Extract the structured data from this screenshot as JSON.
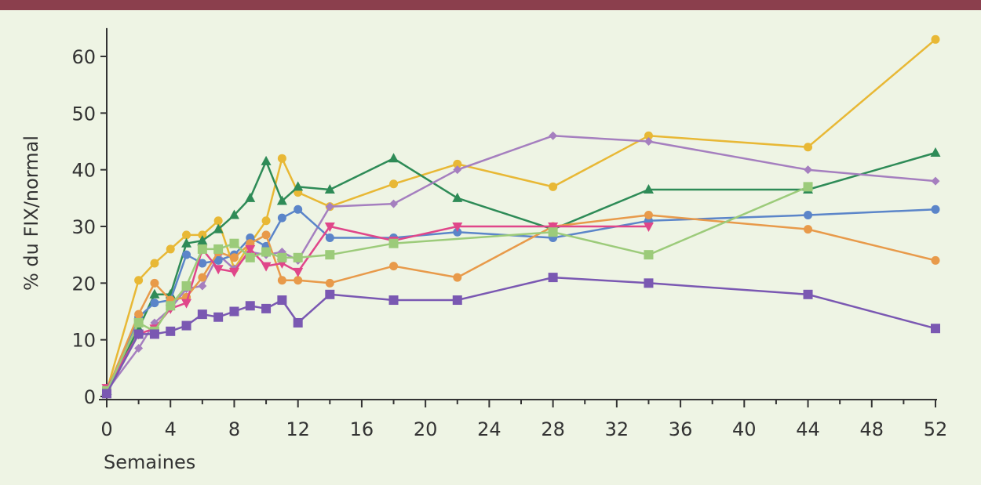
{
  "header_bar": {
    "color": "#8b3f4d"
  },
  "chart_data": {
    "type": "line",
    "title": "",
    "xlabel": "Semaines",
    "ylabel": "% du FIX/normal",
    "xlim": [
      0,
      52
    ],
    "ylim": [
      0,
      65
    ],
    "xticks": [
      0,
      4,
      8,
      12,
      16,
      20,
      24,
      28,
      32,
      36,
      40,
      44,
      48,
      52
    ],
    "yticks": [
      0,
      10,
      20,
      30,
      40,
      50,
      60
    ],
    "grid": false,
    "legend": "none",
    "series": [
      {
        "color": "#e8b835",
        "marker": "circle",
        "points": [
          [
            0,
            1
          ],
          [
            2,
            20.5
          ],
          [
            3,
            23.5
          ],
          [
            4,
            26
          ],
          [
            5,
            28.5
          ],
          [
            6,
            28.5
          ],
          [
            7,
            31
          ],
          [
            8,
            22.5
          ],
          [
            9,
            27
          ],
          [
            10,
            31
          ],
          [
            11,
            42
          ],
          [
            12,
            36
          ],
          [
            14,
            33.5
          ],
          [
            18,
            37.5
          ],
          [
            22,
            41
          ],
          [
            28,
            37
          ],
          [
            34,
            46
          ],
          [
            44,
            44
          ],
          [
            52,
            63
          ]
        ]
      },
      {
        "color": "#2e8b57",
        "marker": "triangle-up",
        "points": [
          [
            0,
            1
          ],
          [
            2,
            12
          ],
          [
            3,
            18
          ],
          [
            4,
            18
          ],
          [
            5,
            27
          ],
          [
            6,
            27.5
          ],
          [
            7,
            29.5
          ],
          [
            8,
            32
          ],
          [
            9,
            35
          ],
          [
            10,
            41.5
          ],
          [
            11,
            34.5
          ],
          [
            12,
            37
          ],
          [
            14,
            36.5
          ],
          [
            18,
            42
          ],
          [
            22,
            35
          ],
          [
            28,
            29.5
          ],
          [
            34,
            36.5
          ],
          [
            44,
            36.5
          ],
          [
            52,
            43
          ]
        ]
      },
      {
        "color": "#a57fbf",
        "marker": "diamond",
        "points": [
          [
            0,
            1
          ],
          [
            2,
            8.5
          ],
          [
            3,
            13
          ],
          [
            4,
            15.5
          ],
          [
            5,
            19
          ],
          [
            6,
            19.5
          ],
          [
            7,
            25
          ],
          [
            8,
            22.5
          ],
          [
            9,
            25.5
          ],
          [
            10,
            25
          ],
          [
            11,
            25.5
          ],
          [
            12,
            24
          ],
          [
            14,
            33.5
          ],
          [
            18,
            34
          ],
          [
            22,
            40
          ],
          [
            28,
            46
          ],
          [
            34,
            45
          ],
          [
            44,
            40
          ],
          [
            52,
            38
          ]
        ]
      },
      {
        "color": "#5b85c9",
        "marker": "circle",
        "points": [
          [
            0,
            1
          ],
          [
            2,
            14
          ],
          [
            3,
            16.5
          ],
          [
            4,
            17
          ],
          [
            5,
            25
          ],
          [
            6,
            23.5
          ],
          [
            7,
            24
          ],
          [
            8,
            25
          ],
          [
            9,
            28
          ],
          [
            10,
            26.5
          ],
          [
            11,
            31.5
          ],
          [
            12,
            33
          ],
          [
            14,
            28
          ],
          [
            18,
            28
          ],
          [
            22,
            29
          ],
          [
            28,
            28
          ],
          [
            34,
            31
          ],
          [
            44,
            32
          ],
          [
            52,
            33
          ]
        ]
      },
      {
        "color": "#e89a4a",
        "marker": "circle",
        "points": [
          [
            0,
            1
          ],
          [
            2,
            14.5
          ],
          [
            3,
            20
          ],
          [
            4,
            17
          ],
          [
            5,
            17.5
          ],
          [
            6,
            21
          ],
          [
            7,
            25.5
          ],
          [
            8,
            24.5
          ],
          [
            9,
            27
          ],
          [
            10,
            28.5
          ],
          [
            11,
            20.5
          ],
          [
            12,
            20.5
          ],
          [
            14,
            20
          ],
          [
            18,
            23
          ],
          [
            22,
            21
          ],
          [
            28,
            30
          ],
          [
            34,
            32
          ],
          [
            44,
            29.5
          ],
          [
            52,
            24
          ]
        ]
      },
      {
        "color": "#e0468a",
        "marker": "triangle-down",
        "points": [
          [
            0,
            1.5
          ],
          [
            2,
            11
          ],
          [
            3,
            12
          ],
          [
            4,
            15.5
          ],
          [
            5,
            16.5
          ],
          [
            6,
            26
          ],
          [
            7,
            22.5
          ],
          [
            8,
            22
          ],
          [
            9,
            26
          ],
          [
            10,
            23
          ],
          [
            11,
            23.5
          ],
          [
            12,
            22
          ],
          [
            14,
            30
          ],
          [
            18,
            27.5
          ],
          [
            22,
            30
          ],
          [
            28,
            30
          ],
          [
            34,
            30
          ]
        ]
      },
      {
        "color": "#9ccb7a",
        "marker": "square",
        "points": [
          [
            0,
            1
          ],
          [
            2,
            13
          ],
          [
            3,
            11.5
          ],
          [
            4,
            16
          ],
          [
            5,
            19.5
          ],
          [
            6,
            26
          ],
          [
            7,
            26
          ],
          [
            8,
            27
          ],
          [
            9,
            24.5
          ],
          [
            10,
            25.5
          ],
          [
            11,
            24.5
          ],
          [
            12,
            24.5
          ],
          [
            14,
            25
          ],
          [
            18,
            27
          ],
          [
            28,
            29
          ],
          [
            34,
            25
          ],
          [
            44,
            37
          ]
        ]
      },
      {
        "color": "#7a58b2",
        "marker": "square",
        "points": [
          [
            0,
            0.5
          ],
          [
            2,
            11
          ],
          [
            3,
            11
          ],
          [
            4,
            11.5
          ],
          [
            5,
            12.5
          ],
          [
            6,
            14.5
          ],
          [
            7,
            14
          ],
          [
            8,
            15
          ],
          [
            9,
            16
          ],
          [
            10,
            15.5
          ],
          [
            11,
            17
          ],
          [
            12,
            13
          ],
          [
            14,
            18
          ],
          [
            18,
            17
          ],
          [
            22,
            17
          ],
          [
            28,
            21
          ],
          [
            34,
            20
          ],
          [
            44,
            18
          ],
          [
            52,
            12
          ]
        ]
      }
    ]
  }
}
